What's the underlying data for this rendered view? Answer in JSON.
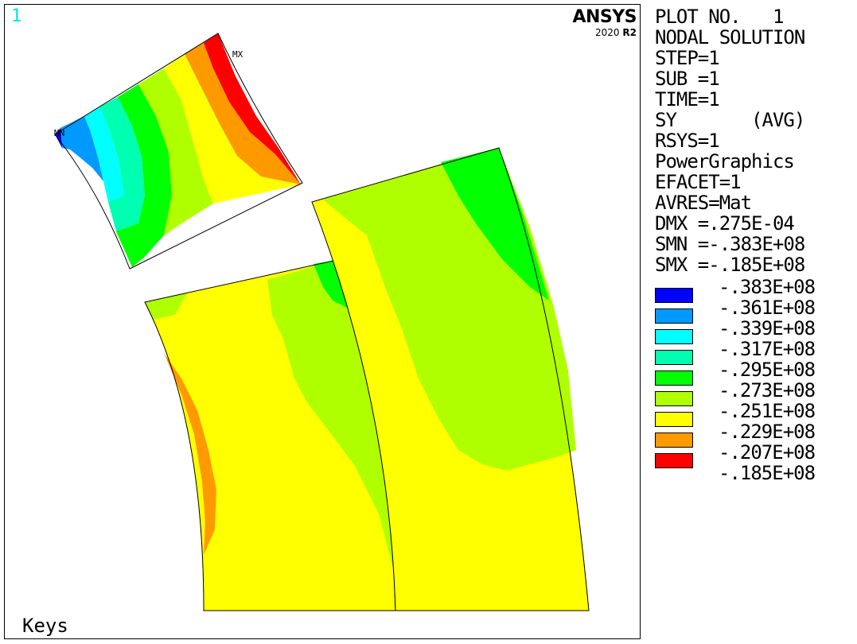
{
  "window_number": "1",
  "brand": {
    "name": "ANSYS",
    "version_year": "2020",
    "version_release": "R2"
  },
  "keys_label": "Keys",
  "markers": {
    "min_label": "MN",
    "max_label": "MX"
  },
  "info": [
    "PLOT NO.   1",
    "NODAL SOLUTION",
    "STEP=1",
    "SUB =1",
    "TIME=1",
    "SY       (AVG)",
    "RSYS=1",
    "PowerGraphics",
    "EFACET=1",
    "AVRES=Mat",
    "DMX =.275E-04",
    "SMN =-.383E+08",
    "SMX =-.185E+08"
  ],
  "legend": {
    "colors": [
      "#0000ff",
      "#0099ff",
      "#00ffff",
      "#00ffb0",
      "#00ff00",
      "#b0ff00",
      "#ffff00",
      "#ff9900",
      "#ff0000"
    ],
    "values": [
      "-.383E+08",
      "-.361E+08",
      "-.339E+08",
      "-.317E+08",
      "-.295E+08",
      "-.273E+08",
      "-.251E+08",
      "-.229E+08",
      "-.207E+08",
      "-.185E+08"
    ]
  }
}
